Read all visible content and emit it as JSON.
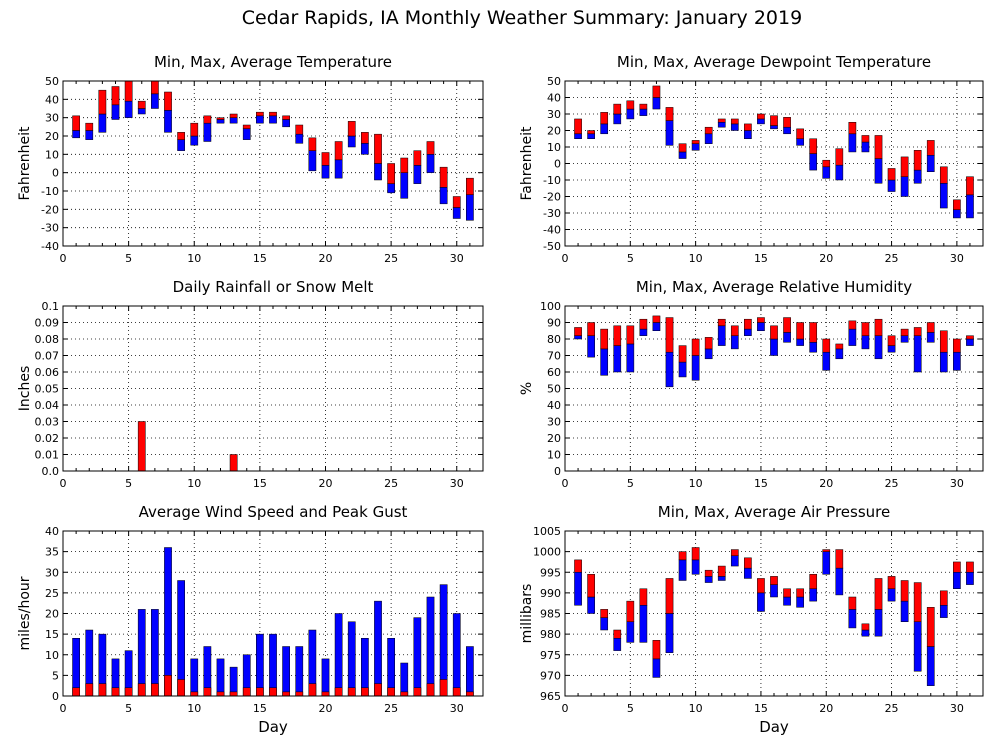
{
  "page_title": "Cedar Rapids, IA Monthly Weather Summary: January 2019",
  "colors": {
    "min_to_avg": "#0000ff",
    "avg_to_max": "#ff0000",
    "grid": "#000000"
  },
  "chart_data": [
    {
      "id": "temp",
      "type": "bar",
      "title": "Min, Max, Average Temperature",
      "ylabel": "Fahrenheit",
      "xlabel": "",
      "xlim": [
        0,
        32
      ],
      "ylim": [
        -40,
        50
      ],
      "yticks": [
        -40,
        -30,
        -20,
        -10,
        0,
        10,
        20,
        30,
        40,
        50
      ],
      "xticks": [
        0,
        5,
        10,
        15,
        20,
        25,
        30
      ],
      "grid": true,
      "day": [
        1,
        2,
        3,
        4,
        5,
        6,
        7,
        8,
        9,
        10,
        11,
        12,
        13,
        14,
        15,
        16,
        17,
        18,
        19,
        20,
        21,
        22,
        23,
        24,
        25,
        26,
        27,
        28,
        29,
        30,
        31
      ],
      "min": [
        19,
        18,
        22,
        29,
        30,
        32,
        35,
        22,
        12,
        15,
        17,
        27,
        27,
        18,
        27,
        27,
        25,
        16,
        1,
        -3,
        -3,
        14,
        10,
        -4,
        -11,
        -14,
        -6,
        0,
        -17,
        -25,
        -26
      ],
      "avg": [
        23,
        23,
        32,
        37,
        39,
        35,
        43,
        34,
        18,
        20,
        27,
        29,
        30,
        24,
        31,
        31,
        29,
        21,
        12,
        4,
        7,
        20,
        16,
        5,
        -6,
        0,
        4,
        10,
        -8,
        -19,
        -12
      ],
      "max": [
        31,
        27,
        45,
        47,
        50,
        39,
        50,
        44,
        22,
        27,
        31,
        30,
        32,
        26,
        33,
        33,
        31,
        26,
        19,
        11,
        17,
        28,
        22,
        21,
        5,
        8,
        12,
        17,
        3,
        -13,
        -3
      ]
    },
    {
      "id": "dewpoint",
      "type": "bar",
      "title": "Min, Max, Average Dewpoint Temperature",
      "ylabel": "Fahrenheit",
      "xlabel": "",
      "xlim": [
        0,
        32
      ],
      "ylim": [
        -50,
        50
      ],
      "yticks": [
        -50,
        -40,
        -30,
        -20,
        -10,
        0,
        10,
        20,
        30,
        40,
        50
      ],
      "xticks": [
        0,
        5,
        10,
        15,
        20,
        25,
        30
      ],
      "grid": true,
      "day": [
        1,
        2,
        3,
        4,
        5,
        6,
        7,
        8,
        9,
        10,
        11,
        12,
        13,
        14,
        15,
        16,
        17,
        18,
        19,
        20,
        21,
        22,
        23,
        24,
        25,
        26,
        27,
        28,
        29,
        30,
        31
      ],
      "min": [
        15,
        15,
        18,
        24,
        27,
        29,
        33,
        11,
        3,
        8,
        12,
        22,
        20,
        15,
        24,
        21,
        18,
        11,
        -4,
        -9,
        -10,
        7,
        7,
        -12,
        -17,
        -20,
        -12,
        -5,
        -27,
        -33,
        -33
      ],
      "avg": [
        18,
        18,
        24,
        30,
        33,
        33,
        40,
        26,
        7,
        12,
        18,
        25,
        24,
        20,
        27,
        23,
        22,
        15,
        6,
        -2,
        -1,
        18,
        13,
        3,
        -10,
        -8,
        -4,
        5,
        -12,
        -28,
        -19
      ],
      "max": [
        27,
        20,
        31,
        36,
        38,
        36,
        47,
        34,
        12,
        14,
        22,
        27,
        27,
        24,
        30,
        29,
        28,
        21,
        15,
        2,
        9,
        25,
        17,
        17,
        -3,
        4,
        8,
        14,
        -2,
        -22,
        -8
      ]
    },
    {
      "id": "rain",
      "type": "bar",
      "title": "Daily Rainfall or Snow Melt",
      "ylabel": "Inches",
      "xlabel": "",
      "xlim": [
        0,
        32
      ],
      "ylim": [
        0,
        0.1
      ],
      "yticks": [
        0,
        0.01,
        0.02,
        0.03,
        0.04,
        0.05,
        0.06,
        0.07,
        0.08,
        0.09,
        0.1
      ],
      "ytick_labels": [
        "0.0",
        "0.01",
        "0.02",
        "0.03",
        "0.04",
        "0.05",
        "0.06",
        "0.07",
        "0.08",
        "0.09",
        "0.1"
      ],
      "xticks": [
        0,
        5,
        10,
        15,
        20,
        25,
        30
      ],
      "grid": true,
      "day": [
        6,
        13
      ],
      "values": [
        0.03,
        0.01
      ]
    },
    {
      "id": "humidity",
      "type": "bar",
      "title": "Min, Max, Average Relative Humidity",
      "ylabel": "%",
      "xlabel": "",
      "xlim": [
        0,
        32
      ],
      "ylim": [
        0,
        100
      ],
      "yticks": [
        0,
        10,
        20,
        30,
        40,
        50,
        60,
        70,
        80,
        90,
        100
      ],
      "xticks": [
        0,
        5,
        10,
        15,
        20,
        25,
        30
      ],
      "grid": true,
      "day": [
        1,
        2,
        3,
        4,
        5,
        6,
        7,
        8,
        9,
        10,
        11,
        12,
        13,
        14,
        15,
        16,
        17,
        18,
        19,
        20,
        21,
        22,
        23,
        24,
        25,
        26,
        27,
        28,
        29,
        30,
        31
      ],
      "min": [
        80,
        69,
        58,
        60,
        60,
        82,
        85,
        51,
        57,
        55,
        68,
        76,
        74,
        82,
        85,
        70,
        78,
        76,
        72,
        61,
        68,
        76,
        74,
        68,
        72,
        78,
        60,
        78,
        60,
        61,
        76
      ],
      "avg": [
        82,
        82,
        74,
        76,
        77,
        86,
        90,
        72,
        66,
        70,
        74,
        88,
        82,
        86,
        90,
        80,
        84,
        80,
        78,
        72,
        74,
        86,
        82,
        82,
        76,
        82,
        82,
        84,
        72,
        72,
        80
      ],
      "max": [
        87,
        90,
        86,
        88,
        88,
        92,
        94,
        93,
        76,
        80,
        81,
        92,
        88,
        92,
        93,
        88,
        93,
        90,
        90,
        80,
        77,
        91,
        90,
        92,
        82,
        86,
        87,
        90,
        85,
        80,
        82
      ]
    },
    {
      "id": "wind",
      "type": "bar",
      "title": "Average Wind Speed and Peak Gust",
      "ylabel": "miles/hour",
      "xlabel": "Day",
      "xlim": [
        0,
        32
      ],
      "ylim": [
        0,
        40
      ],
      "yticks": [
        0,
        5,
        10,
        15,
        20,
        25,
        30,
        35,
        40
      ],
      "xticks": [
        0,
        5,
        10,
        15,
        20,
        25,
        30
      ],
      "grid": true,
      "day": [
        1,
        2,
        3,
        4,
        5,
        6,
        7,
        8,
        9,
        10,
        11,
        12,
        13,
        14,
        15,
        16,
        17,
        18,
        19,
        20,
        21,
        22,
        23,
        24,
        25,
        26,
        27,
        28,
        29,
        30,
        31
      ],
      "peak_gust": [
        14,
        16,
        15,
        9,
        11,
        21,
        21,
        36,
        28,
        9,
        12,
        9,
        7,
        10,
        15,
        15,
        12,
        12,
        16,
        9,
        20,
        18,
        14,
        23,
        14,
        8,
        19,
        24,
        27,
        20,
        12
      ],
      "avg_speed": [
        2,
        3,
        3,
        2,
        2,
        3,
        3,
        5,
        4,
        1,
        2,
        1,
        1,
        2,
        2,
        2,
        1,
        1,
        3,
        1,
        2,
        2,
        2,
        3,
        2,
        1,
        2,
        3,
        4,
        2,
        1
      ]
    },
    {
      "id": "pressure",
      "type": "bar",
      "title": "Min, Max, Average Air Pressure",
      "ylabel": "millibars",
      "xlabel": "Day",
      "xlim": [
        0,
        32
      ],
      "ylim": [
        965,
        1005
      ],
      "yticks": [
        965,
        970,
        975,
        980,
        985,
        990,
        995,
        1000,
        1005
      ],
      "xticks": [
        0,
        5,
        10,
        15,
        20,
        25,
        30
      ],
      "grid": true,
      "day": [
        1,
        2,
        3,
        4,
        5,
        6,
        7,
        8,
        9,
        10,
        11,
        12,
        13,
        14,
        15,
        16,
        17,
        18,
        19,
        20,
        21,
        22,
        23,
        24,
        25,
        26,
        27,
        28,
        29,
        30,
        31
      ],
      "min": [
        987,
        985,
        981,
        976,
        978,
        978,
        969.5,
        975.5,
        993,
        994.5,
        992.5,
        993,
        996.5,
        993.5,
        985.5,
        989,
        987,
        986.5,
        988,
        994.5,
        989.5,
        981.5,
        979.5,
        979.5,
        988,
        983,
        971,
        967.5,
        984,
        991,
        992
      ],
      "avg": [
        995,
        989,
        984,
        979,
        983,
        987,
        974,
        985,
        998,
        998,
        994,
        994,
        999,
        996,
        990,
        992,
        989,
        989,
        991,
        1000,
        996,
        986,
        981,
        986,
        991,
        988,
        983,
        977,
        987,
        995,
        995
      ],
      "max": [
        998,
        994.5,
        986,
        981,
        988,
        991,
        978.5,
        993.5,
        1000,
        1001,
        995.5,
        996.5,
        1000.5,
        998.5,
        993.5,
        994,
        991,
        991,
        994.5,
        1000.5,
        1000.5,
        989,
        982.5,
        993.5,
        994,
        993,
        992.5,
        986.5,
        990.5,
        997.5,
        997.5
      ]
    }
  ]
}
